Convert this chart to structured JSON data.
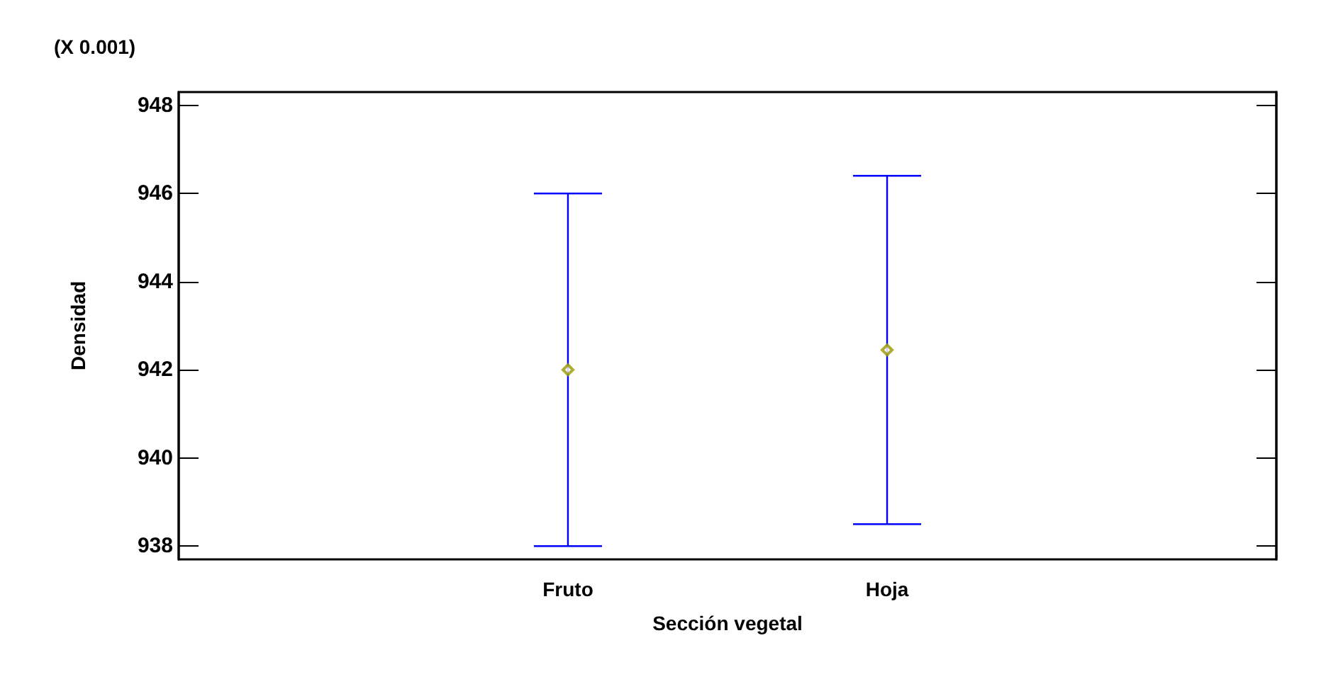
{
  "chart_data": {
    "type": "scatter",
    "xlabel": "Sección vegetal",
    "ylabel": "Densidad",
    "annotations": [
      "(X 0.001)"
    ],
    "categories": [
      "Fruto",
      "Hoja"
    ],
    "series": [
      {
        "color": "#999900",
        "values": [
          942.0,
          942.45
        ],
        "errors": [
          4.0,
          3.95
        ]
      }
    ],
    "ylim": [
      937.7,
      948.3
    ],
    "yticks": [
      938,
      940,
      942,
      944,
      946,
      948
    ],
    "marker": "diamond",
    "grid": false
  }
}
